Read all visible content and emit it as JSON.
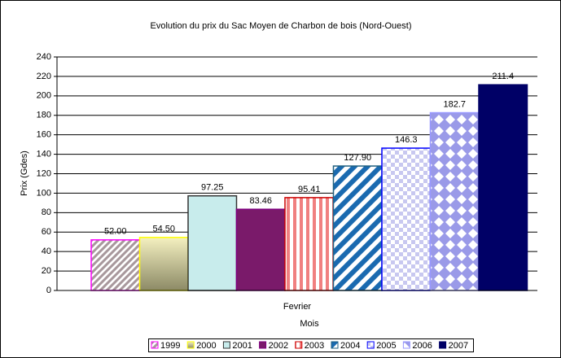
{
  "chart_data": {
    "type": "bar",
    "title": "Evolution du prix du Sac Moyen de Charbon de bois (Nord-Ouest)",
    "x_label": "Mois",
    "y_label": "Prix (Gdes)",
    "categories": [
      "Fevrier"
    ],
    "ylim": [
      0,
      240
    ],
    "yticks": [
      0,
      20,
      40,
      60,
      80,
      100,
      120,
      140,
      160,
      180,
      200,
      220,
      240
    ],
    "grid": true,
    "legend": "bottom",
    "series": [
      {
        "name": "1999",
        "color": "#a8989c",
        "border": "#ff00ff",
        "pattern": "diagonal",
        "values": [
          52
        ],
        "value_labels": [
          "52.00"
        ]
      },
      {
        "name": "2000",
        "color": "#f4f0c0",
        "border": "#ffff00",
        "pattern": "gradient",
        "values": [
          54.5
        ],
        "value_labels": [
          "54.50"
        ]
      },
      {
        "name": "2001",
        "color": "#c8ecec",
        "border": "#333333",
        "pattern": "solid",
        "values": [
          97.25
        ],
        "value_labels": [
          "97.25"
        ]
      },
      {
        "name": "2002",
        "color": "#7a1a6a",
        "border": "#800080",
        "pattern": "solid",
        "values": [
          83.46
        ],
        "value_labels": [
          "83.46"
        ]
      },
      {
        "name": "2003",
        "color": "#f08080",
        "border": "#cc0000",
        "pattern": "vertical",
        "values": [
          95.41
        ],
        "value_labels": [
          "95.41"
        ]
      },
      {
        "name": "2004",
        "color": "#1a6ab0",
        "border": "#206080",
        "pattern": "diagonal-wide",
        "values": [
          127.9
        ],
        "value_labels": [
          "127.90"
        ]
      },
      {
        "name": "2005",
        "color": "#c8c8f0",
        "border": "#0000ff",
        "pattern": "checker",
        "values": [
          146.3
        ],
        "value_labels": [
          "146.3"
        ]
      },
      {
        "name": "2006",
        "color": "#9a9ae8",
        "border": "#9999ff",
        "pattern": "diamond",
        "values": [
          182.7
        ],
        "value_labels": [
          "182.7"
        ]
      },
      {
        "name": "2007",
        "color": "#000066",
        "border": "#000066",
        "pattern": "solid",
        "values": [
          211.4
        ],
        "value_labels": [
          "211.4"
        ]
      }
    ]
  }
}
